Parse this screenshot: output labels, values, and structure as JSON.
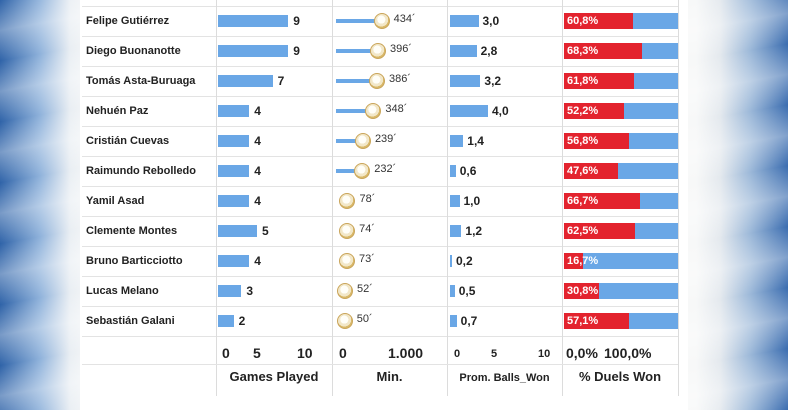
{
  "chart_data": {
    "type": "bar",
    "categories": [
      "Felipe Gutiérrez",
      "Diego Buonanotte",
      "Tomás Asta-Buruaga",
      "Nehuén Paz",
      "Cristián Cuevas",
      "Raimundo Rebolledo",
      "Yamil Asad",
      "Clemente Montes",
      "Bruno Barticciotto",
      "Lucas Melano",
      "Sebastián Galani"
    ],
    "panels": [
      {
        "key": "games",
        "title": "Games Played",
        "ticks": [
          "0",
          "5",
          "10"
        ],
        "xlim": [
          0,
          10
        ],
        "values": [
          9,
          9,
          7,
          4,
          4,
          4,
          4,
          5,
          4,
          3,
          2
        ],
        "labels": [
          "9",
          "9",
          "7",
          "4",
          "4",
          "4",
          "4",
          "5",
          "4",
          "3",
          "2"
        ]
      },
      {
        "key": "minutes",
        "title": "Min.",
        "ticks": [
          "0",
          "1.000"
        ],
        "xlim": [
          0,
          1000
        ],
        "values": [
          434,
          396,
          386,
          348,
          239,
          232,
          78,
          74,
          73,
          52,
          50
        ],
        "labels": [
          "434´",
          "396´",
          "386´",
          "348´",
          "239´",
          "232´",
          "78´",
          "74´",
          "73´",
          "52´",
          "50´"
        ],
        "marker": "soccer-ball-icon"
      },
      {
        "key": "balls_won",
        "title": "Prom. Balls_Won",
        "ticks": [
          "0",
          "5",
          "10"
        ],
        "xlim": [
          0,
          10
        ],
        "values": [
          3.0,
          2.8,
          3.2,
          4.0,
          1.4,
          0.6,
          1.0,
          1.2,
          0.2,
          0.5,
          0.7
        ],
        "labels": [
          "3,0",
          "2,8",
          "3,2",
          "4,0",
          "1,4",
          "0,6",
          "1,0",
          "1,2",
          "0,2",
          "0,5",
          "0,7"
        ]
      },
      {
        "key": "duels",
        "title": "% Duels Won",
        "ticks": [
          "0,0%",
          "100,0%"
        ],
        "xlim": [
          0,
          100
        ],
        "values": [
          60.8,
          68.3,
          61.8,
          52.2,
          56.8,
          47.6,
          66.7,
          62.5,
          16.7,
          30.8,
          57.1
        ],
        "labels": [
          "60,8%",
          "68,3%",
          "61,8%",
          "52,2%",
          "56,8%",
          "47,6%",
          "66,7%",
          "62,5%",
          "16,7%",
          "30,8%",
          "57,1%"
        ]
      }
    ],
    "colors": {
      "bar": "#6aa7e6",
      "won": "#e3232e",
      "remainder": "#6aa7e6"
    }
  }
}
